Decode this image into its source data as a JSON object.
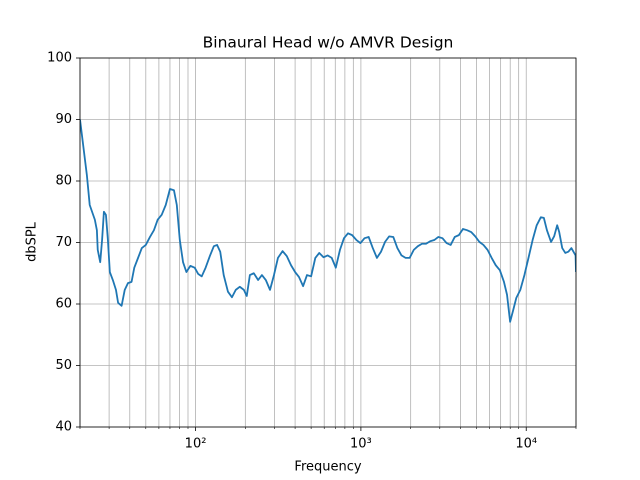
{
  "chart_data": {
    "type": "line",
    "title": "Binaural Head w/o AMVR Design",
    "xlabel": "Frequency",
    "ylabel": "dbSPL",
    "xscale": "log",
    "grid": true,
    "color": "#1f77b4",
    "xlim": [
      20,
      20000
    ],
    "ylim": [
      40,
      100
    ],
    "xticks": [
      {
        "value": 100,
        "label": "10²"
      },
      {
        "value": 1000,
        "label": "10³"
      },
      {
        "value": 10000,
        "label": "10⁴"
      }
    ],
    "xminorticks": [
      20,
      30,
      40,
      50,
      60,
      70,
      80,
      90,
      200,
      300,
      400,
      500,
      600,
      700,
      800,
      900,
      2000,
      3000,
      4000,
      5000,
      6000,
      7000,
      8000,
      9000,
      20000
    ],
    "yticks": [
      40,
      50,
      60,
      70,
      80,
      90,
      100
    ],
    "x": [
      20,
      22,
      22.9,
      24.6,
      25.3,
      25.6,
      26.5,
      27.2,
      27.9,
      28.7,
      29.5,
      30.3,
      31.6,
      33,
      34,
      35.7,
      37.3,
      39,
      41,
      42.6,
      44.9,
      47.3,
      50,
      53,
      56,
      59,
      62.4,
      66,
      70,
      74,
      77,
      80.3,
      84,
      88,
      93,
      98.8,
      103.6,
      109,
      115,
      122,
      129,
      135,
      141,
      148,
      157,
      166,
      175,
      185,
      196,
      204,
      213,
      225,
      239,
      252,
      266,
      282,
      298,
      315,
      336,
      356,
      378,
      400,
      422,
      447,
      472,
      500,
      530,
      560,
      594,
      629,
      666,
      705,
      747,
      790,
      836,
      885,
      940,
      994,
      1052,
      1114,
      1180,
      1250,
      1323,
      1400,
      1482,
      1570,
      1662,
      1760,
      1863,
      1972,
      2088,
      2211,
      2341,
      2478,
      2624,
      2778,
      2941,
      3114,
      3297,
      3491,
      3696,
      3913,
      4143,
      4386,
      4644,
      4917,
      5205,
      5511,
      5835,
      6178,
      6541,
      6925,
      7332,
      7653,
      7990,
      8340,
      8710,
      9210,
      9750,
      10320,
      10930,
      11570,
      12250,
      12780,
      13340,
      14130,
      14750,
      15390,
      15830,
      16510,
      17230,
      17990,
      18760,
      19880,
      20000
    ],
    "values": [
      90,
      81,
      76.1,
      73.7,
      72,
      68.8,
      66.8,
      70.4,
      75,
      74.5,
      70.4,
      65.2,
      63.9,
      62.3,
      60.2,
      59.7,
      62.3,
      63.4,
      63.6,
      65.9,
      67.5,
      69.1,
      69.6,
      70.9,
      72,
      73.7,
      74.5,
      76.1,
      78.7,
      78.5,
      76.1,
      70.4,
      66.8,
      65.2,
      66.2,
      65.9,
      64.9,
      64.5,
      65.9,
      67.8,
      69.4,
      69.6,
      68.5,
      64.7,
      62,
      61.1,
      62.3,
      62.8,
      62.3,
      61.3,
      64.7,
      65,
      63.9,
      64.7,
      63.9,
      62.3,
      64.7,
      67.5,
      68.6,
      67.8,
      66.3,
      65.2,
      64.4,
      62.9,
      64.7,
      64.5,
      67.5,
      68.3,
      67.6,
      67.9,
      67.5,
      65.9,
      68.8,
      70.7,
      71.5,
      71.2,
      70.4,
      69.9,
      70.7,
      70.9,
      69.1,
      67.5,
      68.5,
      70.1,
      71,
      70.9,
      69.1,
      67.9,
      67.5,
      67.5,
      68.8,
      69.4,
      69.8,
      69.8,
      70.2,
      70.4,
      70.9,
      70.7,
      69.9,
      69.6,
      70.9,
      71.2,
      72.2,
      72,
      71.7,
      71,
      70.1,
      69.6,
      68.8,
      67.5,
      66.3,
      65.5,
      63.6,
      61.5,
      57.1,
      59,
      61,
      62.3,
      64.7,
      67.5,
      70.4,
      72.8,
      74.1,
      74,
      72,
      70.1,
      71,
      72.8,
      71.7,
      69.1,
      68.3,
      68.5,
      69.1,
      67.9,
      65.2
    ]
  }
}
